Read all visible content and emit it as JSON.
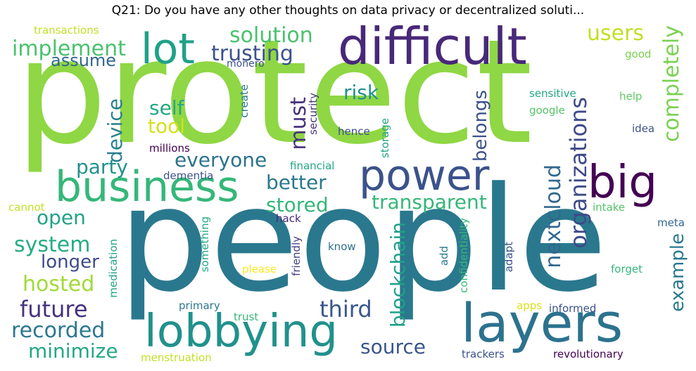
{
  "title": "Q21: Do you have any other thoughts on data privacy or decentralized soluti...",
  "words": [
    {
      "text": "protect",
      "color": "#8fd744"
    },
    {
      "text": "people",
      "color": "#2a788e"
    },
    {
      "text": "difficult",
      "color": "#482878"
    },
    {
      "text": "business",
      "color": "#35b779"
    },
    {
      "text": "lobbying",
      "color": "#21918c"
    },
    {
      "text": "layers",
      "color": "#2c728e"
    },
    {
      "text": "power",
      "color": "#3b528b"
    },
    {
      "text": "lot",
      "color": "#1fa187"
    },
    {
      "text": "big",
      "color": "#440154"
    },
    {
      "text": "implement",
      "color": "#4ac16d"
    },
    {
      "text": "solution",
      "color": "#4ac16d"
    },
    {
      "text": "trusting",
      "color": "#3b528b"
    },
    {
      "text": "users",
      "color": "#c2df23"
    },
    {
      "text": "assume",
      "color": "#31688e"
    },
    {
      "text": "transactions",
      "color": "#c2df23"
    },
    {
      "text": "monero",
      "color": "#3b528b"
    },
    {
      "text": "good",
      "color": "#7ad151"
    },
    {
      "text": "completely",
      "color": "#7ad151"
    },
    {
      "text": "risk",
      "color": "#21918c"
    },
    {
      "text": "self",
      "color": "#22a884"
    },
    {
      "text": "tool",
      "color": "#d2e21b"
    },
    {
      "text": "device",
      "color": "#27808e"
    },
    {
      "text": "must",
      "color": "#46327e"
    },
    {
      "text": "belongs",
      "color": "#3b528b"
    },
    {
      "text": "organizations",
      "color": "#3e4a89"
    },
    {
      "text": "sensitive",
      "color": "#22a884"
    },
    {
      "text": "help",
      "color": "#5ec962"
    },
    {
      "text": "google",
      "color": "#54c568"
    },
    {
      "text": "idea",
      "color": "#3b528b"
    },
    {
      "text": "create",
      "color": "#2a788e"
    },
    {
      "text": "security",
      "color": "#46327e"
    },
    {
      "text": "storage",
      "color": "#20a386"
    },
    {
      "text": "hence",
      "color": "#3e4a89"
    },
    {
      "text": "millions",
      "color": "#440154"
    },
    {
      "text": "everyone",
      "color": "#2c728e"
    },
    {
      "text": "party",
      "color": "#21918c"
    },
    {
      "text": "dementia",
      "color": "#3b528b"
    },
    {
      "text": "financial",
      "color": "#22a884"
    },
    {
      "text": "better",
      "color": "#2a788e"
    },
    {
      "text": "stored",
      "color": "#35b779"
    },
    {
      "text": "transparent",
      "color": "#35b779"
    },
    {
      "text": "nextcloud",
      "color": "#31688e"
    },
    {
      "text": "open",
      "color": "#20a386"
    },
    {
      "text": "system",
      "color": "#25ac82"
    },
    {
      "text": "cannot",
      "color": "#c2df23"
    },
    {
      "text": "hack",
      "color": "#482878"
    },
    {
      "text": "intake",
      "color": "#54c568"
    },
    {
      "text": "meta",
      "color": "#31688e"
    },
    {
      "text": "example",
      "color": "#2a788e"
    },
    {
      "text": "longer",
      "color": "#3e4a89"
    },
    {
      "text": "hosted",
      "color": "#a0da39"
    },
    {
      "text": "future",
      "color": "#46327e"
    },
    {
      "text": "recorded",
      "color": "#2a788e"
    },
    {
      "text": "minimize",
      "color": "#22a884"
    },
    {
      "text": "medication",
      "color": "#20a386"
    },
    {
      "text": "something",
      "color": "#22a884"
    },
    {
      "text": "please",
      "color": "#fde725"
    },
    {
      "text": "friendly",
      "color": "#433e85"
    },
    {
      "text": "know",
      "color": "#2c728e"
    },
    {
      "text": "add",
      "color": "#2a788e"
    },
    {
      "text": "confidentiality",
      "color": "#35b779"
    },
    {
      "text": "adapt",
      "color": "#3b528b"
    },
    {
      "text": "forget",
      "color": "#35b779"
    },
    {
      "text": "blockchain",
      "color": "#1fa187"
    },
    {
      "text": "third",
      "color": "#39568c"
    },
    {
      "text": "primary",
      "color": "#2a788e"
    },
    {
      "text": "trust",
      "color": "#35b779"
    },
    {
      "text": "apps",
      "color": "#d8e219"
    },
    {
      "text": "informed",
      "color": "#3b528b"
    },
    {
      "text": "source",
      "color": "#39568c"
    },
    {
      "text": "trackers",
      "color": "#3b528b"
    },
    {
      "text": "menstruation",
      "color": "#c2df23"
    },
    {
      "text": "revolutionary",
      "color": "#440154"
    }
  ]
}
